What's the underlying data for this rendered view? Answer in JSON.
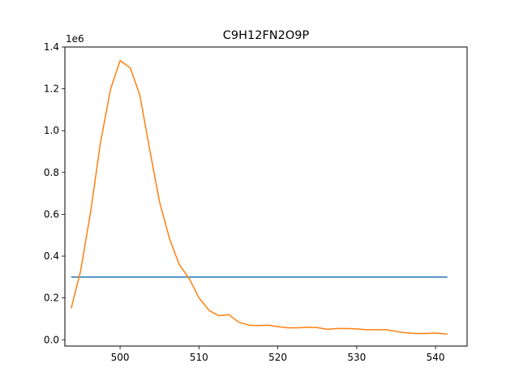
{
  "chart_data": {
    "type": "line",
    "title": "C9H12FN2O9P",
    "xlabel": "",
    "ylabel": "",
    "y_scale_label": "1e6",
    "xlim": [
      493.0,
      544.0
    ],
    "ylim": [
      -0.03,
      1.4
    ],
    "x_ticks": [
      500,
      510,
      520,
      530,
      540
    ],
    "y_ticks": [
      0.0,
      0.2,
      0.4,
      0.6,
      0.8,
      1.0,
      1.2,
      1.4
    ],
    "x_tick_labels": [
      "500",
      "510",
      "520",
      "530",
      "540"
    ],
    "y_tick_labels": [
      "0.0",
      "0.2",
      "0.4",
      "0.6",
      "0.8",
      "1.0",
      "1.2",
      "1.4"
    ],
    "grid": false,
    "series": [
      {
        "color": "#1f77b4",
        "x": [
          493.8,
          541.5
        ],
        "y": [
          0.3,
          0.3
        ]
      },
      {
        "color": "#ff7f0e",
        "x": [
          493.8,
          495.0,
          496.3,
          497.5,
          498.8,
          500.0,
          501.3,
          502.5,
          503.8,
          505.0,
          506.3,
          507.5,
          508.8,
          510.0,
          511.3,
          512.5,
          513.8,
          515.0,
          516.3,
          517.5,
          518.8,
          520.0,
          521.3,
          522.5,
          523.8,
          525.0,
          526.3,
          527.5,
          528.8,
          530.0,
          531.3,
          532.5,
          533.8,
          535.0,
          536.3,
          537.5,
          538.8,
          540.0,
          541.5
        ],
        "y": [
          0.15,
          0.33,
          0.62,
          0.94,
          1.2,
          1.335,
          1.3,
          1.17,
          0.9,
          0.66,
          0.48,
          0.36,
          0.29,
          0.2,
          0.14,
          0.115,
          0.12,
          0.085,
          0.07,
          0.068,
          0.07,
          0.063,
          0.057,
          0.057,
          0.06,
          0.058,
          0.05,
          0.054,
          0.054,
          0.052,
          0.048,
          0.048,
          0.048,
          0.04,
          0.033,
          0.03,
          0.03,
          0.032,
          0.027
        ]
      }
    ]
  }
}
